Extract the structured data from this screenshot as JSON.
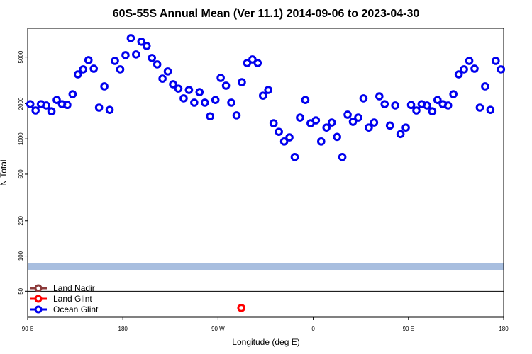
{
  "chart_data": {
    "type": "scatter",
    "title": "60S-55S Annual Mean (Ver 11.1)   2014-09-06 to 2023-04-30",
    "x_label": "Longitude (deg E)",
    "y_label": "N Total",
    "xlim": [
      90,
      540
    ],
    "xticks": [
      {
        "value": 90,
        "label": "90 E"
      },
      180,
      {
        "value": 270,
        "label": "90 W"
      },
      {
        "value": 360,
        "label": "0"
      },
      {
        "value": 450,
        "label": "90 E"
      },
      {
        "value": 540,
        "label": "180"
      }
    ],
    "ylim": [
      30,
      8800
    ],
    "ylog": true,
    "yticks": [
      50,
      100,
      200,
      500,
      1000,
      2000,
      5000
    ],
    "legend": "bottom-left",
    "series": [
      {
        "name": "Land Nadir",
        "color": "#8b3a3a",
        "x": [],
        "values": []
      },
      {
        "name": "Land Glint",
        "color": "#ff0000",
        "x": [
          292
        ],
        "values": [
          36
        ]
      },
      {
        "name": "Ocean Glint",
        "color": "#0000ee",
        "x": [
          92.5,
          97.5,
          102.5,
          107.5,
          112.5,
          117.5,
          122.5,
          127.5,
          132.5,
          137.5,
          142.5,
          147.5,
          152.5,
          157.5,
          162.5,
          167.5,
          172.5,
          177.5,
          182.5,
          187.5,
          192.5,
          197.5,
          202.5,
          207.5,
          212.5,
          217.5,
          222.5,
          227.5,
          232.5,
          237.5,
          242.5,
          247.5,
          252.5,
          257.5,
          262.5,
          267.5,
          272.5,
          277.5,
          282.5,
          287.5,
          292.5,
          297.5,
          302.5,
          307.5,
          312.5,
          317.5,
          322.5,
          327.5,
          332.5,
          337.5,
          342.5,
          347.5,
          352.5,
          357.5,
          362.5,
          367.5,
          372.5,
          377.5,
          382.5,
          387.5,
          392.5,
          397.5,
          402.5,
          407.5,
          412.5,
          417.5,
          422.5,
          427.5,
          432.5,
          437.5,
          442.5,
          447.5,
          452.5,
          457.5,
          462.5,
          467.5,
          472.5,
          477.5,
          482.5,
          487.5,
          492.5,
          497.5,
          502.5,
          507.5,
          512.5,
          517.5,
          522.5,
          527.5,
          532.5,
          537.5
        ],
        "values": [
          1980,
          1750,
          1980,
          1930,
          1720,
          2150,
          1980,
          1950,
          2410,
          3560,
          3930,
          4710,
          3980,
          1850,
          2810,
          1770,
          4640,
          3930,
          5190,
          7250,
          5260,
          6770,
          6220,
          4910,
          4330,
          3270,
          3770,
          2930,
          2690,
          2220,
          2620,
          2040,
          2510,
          2040,
          1560,
          2150,
          3320,
          2850,
          2040,
          1590,
          3050,
          4450,
          4770,
          4450,
          2340,
          2620,
          1360,
          1150,
          950,
          1030,
          700,
          1520,
          2150,
          1360,
          1440,
          950,
          1250,
          1380,
          1040,
          700,
          1610,
          1400,
          1520,
          2220,
          1250,
          1380,
          2310,
          1980,
          1300,
          1930,
          1100,
          1250,
          1950,
          1750,
          1980,
          1930,
          1720,
          2150,
          1980,
          1930,
          2410,
          3560,
          3930,
          4640,
          3980,
          1850,
          2810,
          1770,
          4640,
          3930
        ]
      }
    ]
  }
}
